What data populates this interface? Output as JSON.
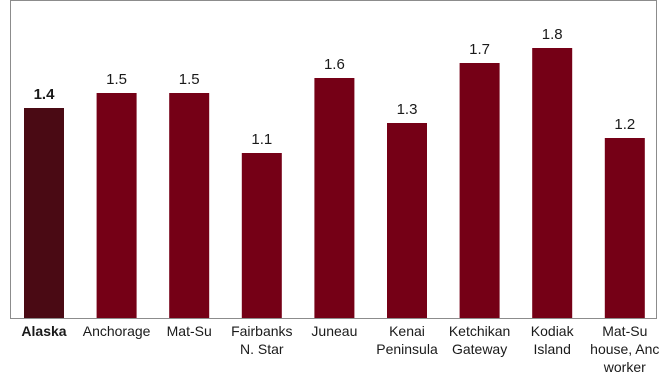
{
  "chart_data": {
    "type": "bar",
    "title": "",
    "xlabel": "",
    "ylabel": "",
    "ylim": [
      0,
      1.9
    ],
    "grid": false,
    "legend": "none",
    "categories": [
      "Alaska",
      "Anchorage",
      "Mat-Su",
      "Fairbanks N. Star",
      "Juneau",
      "Kenai Peninsula",
      "Ketchikan Gateway",
      "Kodiak Island",
      "Mat-Su house, Anc worker"
    ],
    "category_lines": [
      [
        "Alaska"
      ],
      [
        "Anchorage"
      ],
      [
        "Mat-Su"
      ],
      [
        "Fairbanks",
        "N. Star"
      ],
      [
        "Juneau"
      ],
      [
        "Kenai",
        "Peninsula"
      ],
      [
        "Ketchikan",
        "Gateway"
      ],
      [
        "Kodiak",
        "Island"
      ],
      [
        "Mat-Su",
        "house, Anc",
        "worker"
      ]
    ],
    "values": [
      1.4,
      1.5,
      1.5,
      1.1,
      1.6,
      1.3,
      1.7,
      1.8,
      1.2
    ],
    "value_labels": [
      "1.4",
      "1.5",
      "1.5",
      "1.1",
      "1.6",
      "1.3",
      "1.7",
      "1.8",
      "1.2"
    ],
    "highlight_index": 0,
    "colors": {
      "highlight_bar": "#4a0a14",
      "bar": "#750016",
      "frame": "#8c8c8c",
      "text": "#1a1a1a"
    }
  }
}
